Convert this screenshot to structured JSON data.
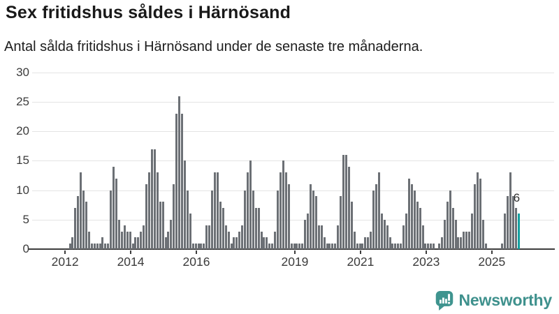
{
  "header": {
    "title": "Sex fritidshus såldes i Härnösand",
    "subtitle": "Antal sålda fritidshus i Härnösand under de senaste tre månaderna."
  },
  "chart_data": {
    "type": "bar",
    "title": "Sex fritidshus såldes i Härnösand",
    "subtitle": "Antal sålda fritidshus i Härnösand under de senaste tre månaderna.",
    "xlabel": "",
    "ylabel": "",
    "frequency": "monthly",
    "start": "2012-01",
    "end": "2025-10",
    "ylim": [
      0,
      30
    ],
    "y_ticks": [
      0,
      5,
      10,
      15,
      20,
      25,
      30
    ],
    "x_tick_years": [
      2012,
      2014,
      2016,
      2019,
      2021,
      2023,
      2025
    ],
    "x_tick_labels": [
      "2012",
      "2014",
      "2016",
      "2019",
      "2021",
      "2023",
      "2025"
    ],
    "grid": "horizontal",
    "legend": "none",
    "bar_color": "#6c7075",
    "highlight_color": "#14a0a0",
    "series": [
      {
        "year": 2012,
        "monthly": [
          0,
          1,
          2,
          7,
          9,
          13,
          10,
          8,
          3,
          1,
          1,
          1
        ]
      },
      {
        "year": 2013,
        "monthly": [
          1,
          2,
          1,
          1,
          10,
          14,
          12,
          5,
          3,
          4,
          3,
          3
        ]
      },
      {
        "year": 2014,
        "monthly": [
          1,
          2,
          2,
          3,
          4,
          11,
          13,
          17,
          17,
          13,
          8,
          8
        ]
      },
      {
        "year": 2015,
        "monthly": [
          2,
          3,
          5,
          11,
          23,
          26,
          23,
          15,
          10,
          6,
          1,
          1
        ]
      },
      {
        "year": 2016,
        "monthly": [
          1,
          1,
          1,
          4,
          4,
          10,
          13,
          13,
          8,
          7,
          4,
          3
        ]
      },
      {
        "year": 2017,
        "monthly": [
          1,
          2,
          2,
          3,
          4,
          10,
          13,
          15,
          10,
          7,
          7,
          3
        ]
      },
      {
        "year": 2018,
        "monthly": [
          2,
          2,
          1,
          1,
          3,
          10,
          13,
          15,
          13,
          11,
          1,
          1
        ]
      },
      {
        "year": 2019,
        "monthly": [
          1,
          1,
          1,
          5,
          6,
          11,
          10,
          9,
          4,
          4,
          2,
          1
        ]
      },
      {
        "year": 2020,
        "monthly": [
          1,
          1,
          1,
          4,
          9,
          16,
          16,
          14,
          8,
          3,
          1,
          1
        ]
      },
      {
        "year": 2021,
        "monthly": [
          1,
          2,
          2,
          3,
          10,
          11,
          13,
          6,
          5,
          4,
          2,
          1
        ]
      },
      {
        "year": 2022,
        "monthly": [
          1,
          1,
          1,
          4,
          6,
          12,
          11,
          10,
          8,
          7,
          4,
          1
        ]
      },
      {
        "year": 2023,
        "monthly": [
          1,
          1,
          1,
          0,
          1,
          2,
          5,
          8,
          10,
          7,
          5,
          2
        ]
      },
      {
        "year": 2024,
        "monthly": [
          2,
          3,
          3,
          3,
          6,
          11,
          13,
          12,
          5,
          1,
          0,
          0
        ]
      },
      {
        "year": 2025,
        "monthly": [
          0,
          0,
          0,
          1,
          6,
          9,
          13,
          9,
          7,
          6
        ]
      }
    ],
    "highlight": {
      "position": "last",
      "value": 6,
      "label": "6"
    }
  },
  "footer": {
    "brand": "Newsworthy"
  }
}
